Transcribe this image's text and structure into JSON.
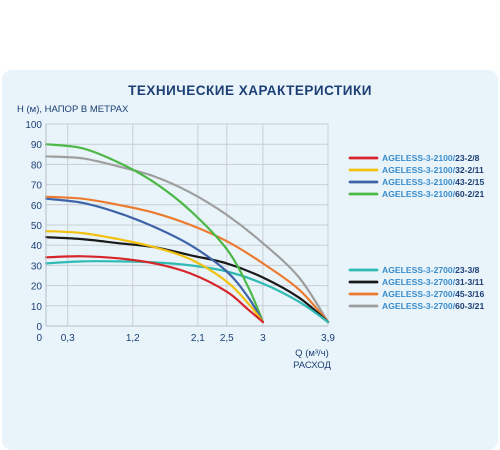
{
  "chart_data": {
    "type": "line",
    "title": "ТЕХНИЧЕСКИЕ ХАРАКТЕРИСТИКИ",
    "ylabel": "Н (м), НАПОР В МЕТРАХ",
    "xlabel_line1": "Q (м³/ч)",
    "xlabel_line2": "РАСХОД",
    "ylim": [
      0,
      100
    ],
    "y_ticks": [
      "0",
      "10",
      "20",
      "30",
      "40",
      "50",
      "60",
      "70",
      "80",
      "90",
      "100"
    ],
    "xlim": [
      0,
      3.9
    ],
    "x_ticks": [
      {
        "value": 0.3,
        "label": "0,3"
      },
      {
        "value": 1.2,
        "label": "1,2"
      },
      {
        "value": 2.1,
        "label": "2,1"
      },
      {
        "value": 2.5,
        "label": "2,5"
      },
      {
        "value": 3.0,
        "label": "3"
      },
      {
        "value": 3.9,
        "label": "3,9"
      }
    ],
    "grid": true,
    "legend_position": "right",
    "series": [
      {
        "name_main": "AGELESS-3-2100/",
        "name_suffix": "23-2/8",
        "color": "#d7262b",
        "x": [
          0,
          0.5,
          1.0,
          1.5,
          2.0,
          2.5,
          2.8,
          3.0
        ],
        "y": [
          34,
          34.5,
          33.5,
          31,
          26,
          17,
          8,
          2
        ]
      },
      {
        "name_main": "AGELESS-3-2100/",
        "name_suffix": "32-2/11",
        "color": "#f2c10f",
        "x": [
          0,
          0.5,
          1.0,
          1.5,
          2.0,
          2.5,
          2.8,
          3.0
        ],
        "y": [
          47,
          46,
          43,
          39,
          33,
          22,
          11,
          2
        ]
      },
      {
        "name_main": "AGELESS-3-2100/",
        "name_suffix": "43-2/15",
        "color": "#3f63a8",
        "x": [
          0,
          0.5,
          1.0,
          1.5,
          2.0,
          2.5,
          2.8,
          3.0
        ],
        "y": [
          63,
          61,
          56,
          49,
          40,
          27,
          14,
          2
        ]
      },
      {
        "name_main": "AGELESS-3-2100/",
        "name_suffix": "60-2/21",
        "color": "#4db847",
        "x": [
          0,
          0.5,
          1.0,
          1.5,
          2.0,
          2.5,
          2.8,
          3.0
        ],
        "y": [
          90,
          88,
          81,
          71,
          57,
          38,
          19,
          2
        ]
      },
      {
        "name_main": "AGELESS-3-2700/",
        "name_suffix": "23-3/8",
        "color": "#2fbab4",
        "x": [
          0,
          0.5,
          1.0,
          1.5,
          2.0,
          2.5,
          3.0,
          3.5,
          3.9
        ],
        "y": [
          31,
          32,
          32,
          31.5,
          30,
          27,
          21,
          12,
          2
        ]
      },
      {
        "name_main": "AGELESS-3-2700/",
        "name_suffix": "31-3/11",
        "color": "#1a1a1a",
        "x": [
          0,
          0.5,
          1.0,
          1.5,
          2.0,
          2.5,
          3.0,
          3.5,
          3.9
        ],
        "y": [
          44,
          43,
          41,
          39,
          35,
          31,
          24,
          14,
          2
        ]
      },
      {
        "name_main": "AGELESS-3-2700/",
        "name_suffix": "45-3/16",
        "color": "#ec7a2f",
        "x": [
          0,
          0.5,
          1.0,
          1.5,
          2.0,
          2.5,
          3.0,
          3.5,
          3.9
        ],
        "y": [
          64,
          63,
          60,
          56,
          50,
          42,
          31,
          18,
          2
        ]
      },
      {
        "name_main": "AGELESS-3-2700/",
        "name_suffix": "60-3/21",
        "color": "#9e9e9e",
        "x": [
          0,
          0.5,
          1.0,
          1.5,
          2.0,
          2.5,
          3.0,
          3.5,
          3.9
        ],
        "y": [
          84,
          83,
          79,
          74,
          66,
          55,
          41,
          24,
          2
        ]
      }
    ]
  }
}
